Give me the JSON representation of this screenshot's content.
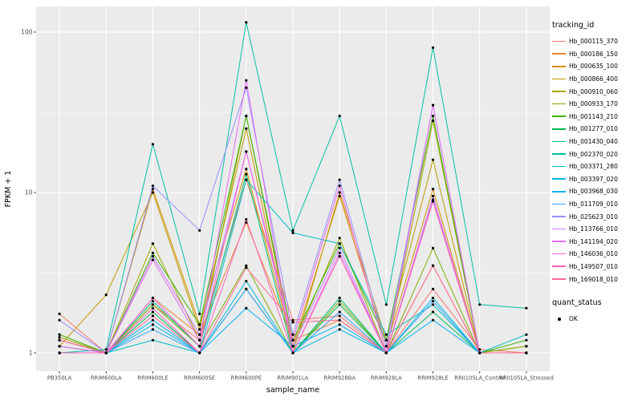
{
  "legend": {
    "tracking_title": "tracking_id",
    "quant_title": "quant_status",
    "quant_items": [
      {
        "label": "OK"
      }
    ]
  },
  "chart_data": {
    "type": "line",
    "title": "",
    "xlabel": "sample_name",
    "ylabel": "FPKM + 1",
    "yscale": "log10",
    "yticks": [
      1,
      10,
      100
    ],
    "minor_gridlines": [
      3.1623,
      31.623
    ],
    "ylim": [
      0.78,
      145
    ],
    "panel_background": "#EBEBEB",
    "gridline_color": "#FFFFFF",
    "point_color": "#000000",
    "legend_position": "right",
    "categories": [
      "PB350LA",
      "RRIM600LA",
      "RRIM600LE",
      "RRIM600SE",
      "RRIM600PE",
      "RRIM901LA",
      "RRIM928BA",
      "RRIM928LA",
      "RRIM928LE",
      "RRII105LA_Control",
      "RRII105LA_Stressed"
    ],
    "series": [
      {
        "name": "Hb_000115_370",
        "color": "#F8766D",
        "values": [
          1.75,
          1.0,
          2.0,
          1.2,
          12.0,
          1.6,
          1.7,
          1.0,
          2.5,
          1.05,
          1.0
        ]
      },
      {
        "name": "Hb_000186_150",
        "color": "#EA8331",
        "values": [
          1.3,
          1.0,
          2.2,
          1.3,
          6.5,
          1.2,
          1.6,
          1.0,
          3.5,
          1.0,
          1.0
        ]
      },
      {
        "name": "Hb_000635_100",
        "color": "#D89000",
        "values": [
          1.2,
          1.0,
          10.5,
          1.5,
          14.0,
          1.1,
          9.5,
          1.1,
          10.5,
          1.0,
          1.0
        ]
      },
      {
        "name": "Hb_000866_400",
        "color": "#C09B00",
        "values": [
          1.1,
          2.3,
          10.0,
          1.4,
          25.0,
          1.0,
          10.0,
          1.2,
          16.0,
          1.0,
          1.0
        ]
      },
      {
        "name": "Hb_000910_060",
        "color": "#A3A500",
        "values": [
          1.25,
          1.0,
          4.8,
          1.2,
          30.0,
          1.1,
          5.2,
          1.0,
          28.0,
          1.0,
          1.1
        ]
      },
      {
        "name": "Hb_000933_170",
        "color": "#7CAE00",
        "values": [
          1.0,
          1.0,
          2.0,
          1.1,
          3.5,
          1.0,
          2.1,
          1.0,
          4.5,
          1.0,
          1.1
        ]
      },
      {
        "name": "Hb_001143_210",
        "color": "#39B600",
        "values": [
          1.3,
          1.0,
          4.2,
          1.5,
          30.0,
          1.2,
          4.8,
          1.2,
          30.0,
          1.0,
          1.2
        ]
      },
      {
        "name": "Hb_001277_010",
        "color": "#00BB4E",
        "values": [
          1.0,
          1.0,
          1.8,
          1.0,
          2.5,
          1.0,
          2.0,
          1.0,
          1.8,
          1.0,
          1.0
        ]
      },
      {
        "name": "Hb_001430_040",
        "color": "#00BF7D",
        "values": [
          1.1,
          1.0,
          2.1,
          1.1,
          13.0,
          1.0,
          2.2,
          1.0,
          9.0,
          1.0,
          1.0
        ]
      },
      {
        "name": "Hb_002370_020",
        "color": "#00C1A3",
        "values": [
          1.0,
          1.05,
          20.0,
          1.75,
          115.0,
          5.8,
          30.0,
          2.0,
          80.0,
          2.0,
          1.9
        ]
      },
      {
        "name": "Hb_003371_280",
        "color": "#00BFC4",
        "values": [
          1.0,
          1.0,
          1.2,
          1.0,
          12.0,
          5.6,
          4.8,
          1.3,
          2.0,
          1.0,
          1.3
        ]
      },
      {
        "name": "Hb_003397_020",
        "color": "#00BAE0",
        "values": [
          1.0,
          1.0,
          1.5,
          1.0,
          2.8,
          1.0,
          1.4,
          1.0,
          2.2,
          1.0,
          1.0
        ]
      },
      {
        "name": "Hb_003968_030",
        "color": "#00B0F6",
        "values": [
          1.0,
          1.0,
          1.6,
          1.0,
          1.9,
          1.1,
          1.5,
          1.0,
          1.6,
          1.0,
          1.0
        ]
      },
      {
        "name": "Hb_011709_010",
        "color": "#35A2FF",
        "values": [
          1.1,
          1.0,
          1.4,
          1.0,
          2.5,
          1.0,
          1.8,
          1.0,
          2.1,
          1.0,
          1.0
        ]
      },
      {
        "name": "Hb_025623_010",
        "color": "#9590FF",
        "values": [
          1.6,
          1.0,
          11.0,
          5.8,
          45.0,
          1.3,
          12.0,
          1.1,
          35.0,
          1.0,
          1.0
        ]
      },
      {
        "name": "Hb_113766_010",
        "color": "#C77CFF",
        "values": [
          1.2,
          1.0,
          4.0,
          1.3,
          18.0,
          1.1,
          4.5,
          1.0,
          9.5,
          1.0,
          1.0
        ]
      },
      {
        "name": "Hb_141194_020",
        "color": "#E76BF3",
        "values": [
          1.0,
          1.0,
          3.8,
          1.2,
          50.0,
          1.0,
          4.2,
          1.0,
          35.0,
          1.0,
          1.0
        ]
      },
      {
        "name": "Hb_146036_010",
        "color": "#FA62DB",
        "values": [
          1.1,
          1.0,
          2.2,
          1.1,
          18.0,
          1.2,
          11.0,
          1.0,
          9.0,
          1.0,
          1.0
        ]
      },
      {
        "name": "Hb_149507_010",
        "color": "#FF62BC",
        "values": [
          1.0,
          1.0,
          1.9,
          1.0,
          6.8,
          1.0,
          4.0,
          1.0,
          8.8,
          1.0,
          1.0
        ]
      },
      {
        "name": "Hb_169018_010",
        "color": "#FF6A98",
        "values": [
          1.2,
          1.0,
          1.7,
          1.0,
          3.4,
          1.55,
          1.6,
          1.0,
          3.5,
          1.0,
          1.0
        ]
      }
    ]
  }
}
